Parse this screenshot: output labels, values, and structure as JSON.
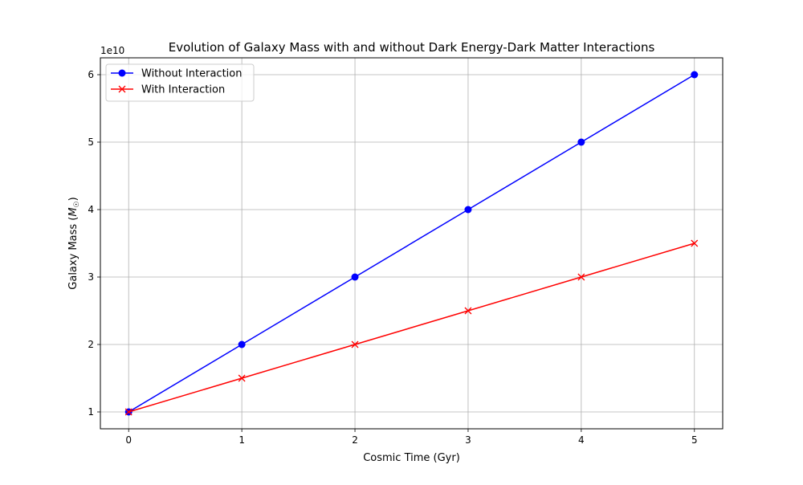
{
  "chart_data": {
    "type": "line",
    "title": "Evolution of Galaxy Mass with and without Dark Energy-Dark Matter Interactions",
    "xlabel": "Cosmic Time (Gyr)",
    "ylabel": "Galaxy Mass (M☉)",
    "ylabel_parts": {
      "text": "Galaxy Mass (",
      "symbol": "M",
      "subscript": "☉",
      "close": ")"
    },
    "y_offset_label": "1e10",
    "y_multiplier": 10000000000,
    "x": [
      0,
      1,
      2,
      3,
      4,
      5
    ],
    "x_ticks": [
      0,
      1,
      2,
      3,
      4,
      5
    ],
    "y_ticks": [
      1,
      2,
      3,
      4,
      5,
      6
    ],
    "xlim": [
      -0.25,
      5.25
    ],
    "ylim": [
      0.75,
      6.25
    ],
    "grid": true,
    "legend_position": "upper left",
    "series": [
      {
        "name": "Without Interaction",
        "color": "#0000ff",
        "marker": "circle",
        "values": [
          10000000000,
          20000000000,
          30000000000,
          40000000000,
          50000000000,
          60000000000
        ]
      },
      {
        "name": "With Interaction",
        "color": "#ff0000",
        "marker": "x",
        "values": [
          10000000000,
          15000000000,
          20000000000,
          25000000000,
          30000000000,
          35000000000
        ]
      }
    ]
  }
}
